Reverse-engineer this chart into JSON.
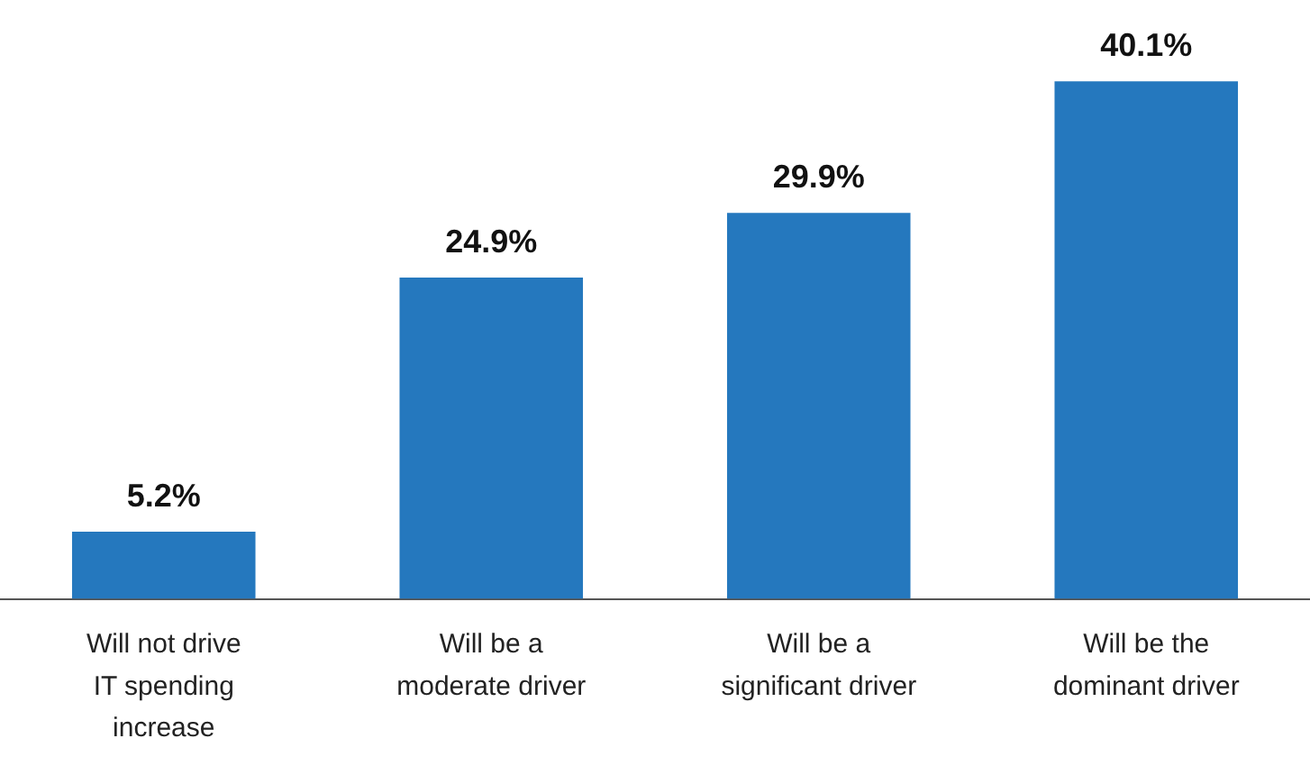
{
  "chart_data": {
    "type": "bar",
    "categories": [
      "Will not drive\nIT spending\nincrease",
      "Will be a\nmoderate driver",
      "Will be a\nsignificant driver",
      "Will be the\ndominant driver"
    ],
    "values": [
      5.2,
      24.9,
      29.9,
      40.1
    ],
    "value_labels": [
      "5.2%",
      "24.9%",
      "29.9%",
      "40.1%"
    ],
    "color": "#2578be",
    "grid": false,
    "legend": false,
    "tick_labels": "x"
  }
}
